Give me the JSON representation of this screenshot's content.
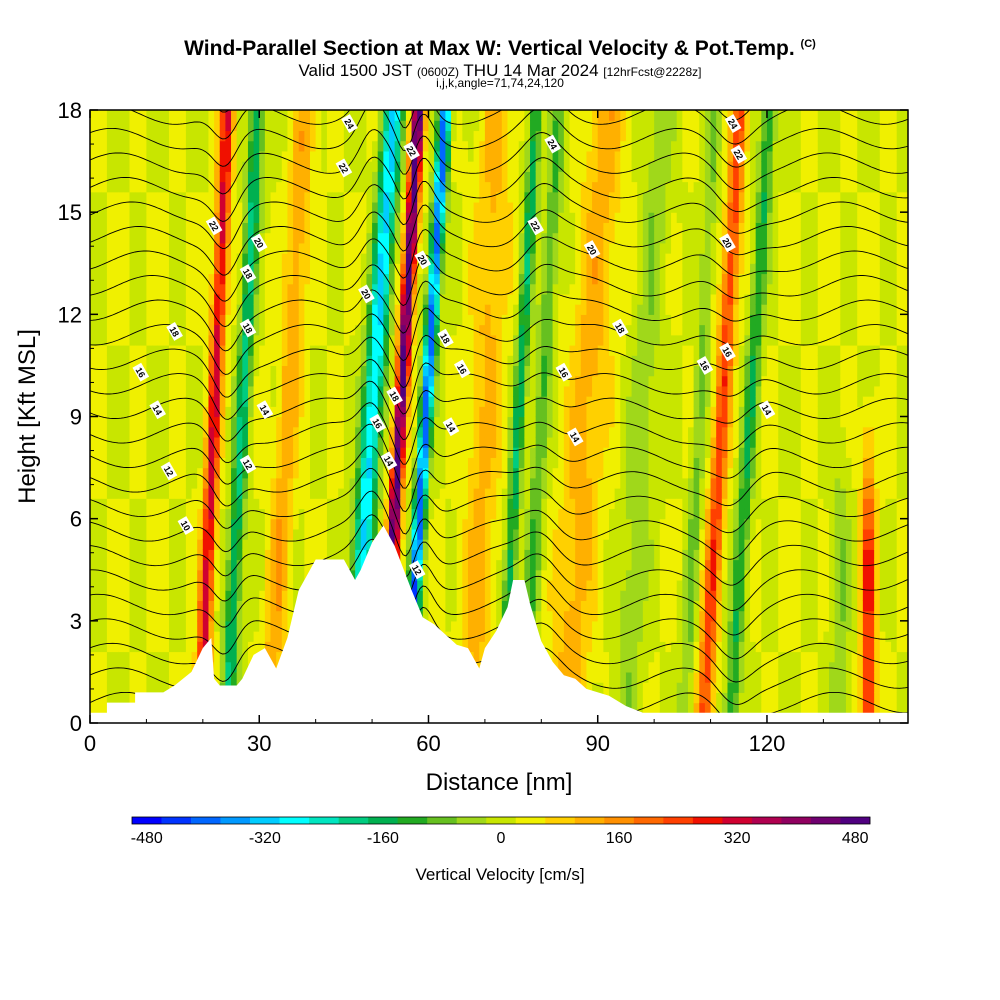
{
  "header": {
    "title": "Wind-Parallel Section at Max W: Vertical Velocity & Pot.Temp.",
    "copyright": "(C)",
    "valid_prefix": "Valid 1500 JST",
    "valid_utc": "(0600Z)",
    "valid_date": "THU 14 Mar 2024",
    "forecast": "[12hrFcst@2228z]",
    "indices": "i,j,k,angle=71,74,24,120"
  },
  "chart_data": {
    "type": "heatmap",
    "xlabel": "Distance [nm]",
    "ylabel": "Height [Kft MSL]",
    "xlim": [
      0,
      145
    ],
    "ylim": [
      0,
      18
    ],
    "xticks": [
      0,
      30,
      60,
      90,
      120
    ],
    "yticks": [
      0,
      3,
      6,
      9,
      12,
      15,
      18
    ],
    "colorbar": {
      "label": "Vertical Velocity [cm/s]",
      "min": -500,
      "max": 500,
      "step": 40,
      "tick_labels": [
        -480,
        -320,
        -160,
        0,
        160,
        320,
        480
      ],
      "colors": [
        "#0000ff",
        "#0033ff",
        "#0066ff",
        "#0099ff",
        "#00ccff",
        "#00ffff",
        "#00e5c0",
        "#00cc80",
        "#00b050",
        "#22aa22",
        "#66c020",
        "#a0d81a",
        "#c8e600",
        "#f0f000",
        "#ffd000",
        "#ffb000",
        "#ff9000",
        "#ff6800",
        "#ff4000",
        "#f01000",
        "#d00030",
        "#b00050",
        "#900060",
        "#700070",
        "#500080"
      ]
    },
    "updraft_cores_nm": [
      22,
      55,
      76,
      115,
      138
    ],
    "downdraft_cores_nm": [
      27,
      50,
      59,
      80,
      120
    ],
    "terrain_kft": [
      [
        0,
        0.3
      ],
      [
        3,
        0.3
      ],
      [
        3,
        0.6
      ],
      [
        8,
        0.6
      ],
      [
        8,
        0.9
      ],
      [
        13,
        0.9
      ],
      [
        15,
        1.1
      ],
      [
        18,
        1.5
      ],
      [
        20,
        2.2
      ],
      [
        21.5,
        2.5
      ],
      [
        22,
        1.3
      ],
      [
        23,
        1.1
      ],
      [
        26,
        1.1
      ],
      [
        27,
        1.3
      ],
      [
        29,
        2.0
      ],
      [
        31,
        2.2
      ],
      [
        33,
        1.6
      ],
      [
        35,
        2.5
      ],
      [
        37,
        3.9
      ],
      [
        38,
        4.2
      ],
      [
        40,
        4.8
      ],
      [
        45,
        4.8
      ],
      [
        47,
        4.2
      ],
      [
        48,
        4.5
      ],
      [
        50,
        5.3
      ],
      [
        52,
        5.8
      ],
      [
        54,
        5.2
      ],
      [
        57,
        3.9
      ],
      [
        59,
        3.1
      ],
      [
        61,
        2.9
      ],
      [
        63,
        2.6
      ],
      [
        65,
        2.3
      ],
      [
        67,
        2.2
      ],
      [
        69,
        1.6
      ],
      [
        70,
        2.2
      ],
      [
        72,
        2.7
      ],
      [
        74,
        3.4
      ],
      [
        75,
        4.2
      ],
      [
        77,
        4.2
      ],
      [
        78,
        3.5
      ],
      [
        80,
        2.4
      ],
      [
        82,
        1.8
      ],
      [
        84,
        1.4
      ],
      [
        86,
        1.3
      ],
      [
        88,
        1.0
      ],
      [
        92,
        0.8
      ],
      [
        95,
        0.5
      ],
      [
        98,
        0.3
      ],
      [
        145,
        0.3
      ]
    ],
    "theta_contour_labels": [
      {
        "x": 17,
        "y": 5.8,
        "text": "10"
      },
      {
        "x": 14,
        "y": 7.4,
        "text": "12"
      },
      {
        "x": 28,
        "y": 7.6,
        "text": "12"
      },
      {
        "x": 12,
        "y": 9.2,
        "text": "14"
      },
      {
        "x": 31,
        "y": 9.2,
        "text": "14"
      },
      {
        "x": 53,
        "y": 7.7,
        "text": "14"
      },
      {
        "x": 64,
        "y": 8.7,
        "text": "14"
      },
      {
        "x": 86,
        "y": 8.4,
        "text": "14"
      },
      {
        "x": 120,
        "y": 9.2,
        "text": "14"
      },
      {
        "x": 9,
        "y": 10.3,
        "text": "16"
      },
      {
        "x": 51,
        "y": 8.8,
        "text": "16"
      },
      {
        "x": 66,
        "y": 10.4,
        "text": "16"
      },
      {
        "x": 84,
        "y": 10.3,
        "text": "16"
      },
      {
        "x": 109,
        "y": 10.5,
        "text": "16"
      },
      {
        "x": 113,
        "y": 10.9,
        "text": "16"
      },
      {
        "x": 15,
        "y": 11.5,
        "text": "18"
      },
      {
        "x": 28,
        "y": 13.2,
        "text": "18"
      },
      {
        "x": 28,
        "y": 11.6,
        "text": "18"
      },
      {
        "x": 54,
        "y": 9.6,
        "text": "18"
      },
      {
        "x": 63,
        "y": 11.3,
        "text": "18"
      },
      {
        "x": 94,
        "y": 11.6,
        "text": "18"
      },
      {
        "x": 30,
        "y": 14.1,
        "text": "20"
      },
      {
        "x": 49,
        "y": 12.6,
        "text": "20"
      },
      {
        "x": 59,
        "y": 13.6,
        "text": "20"
      },
      {
        "x": 89,
        "y": 13.9,
        "text": "20"
      },
      {
        "x": 113,
        "y": 14.1,
        "text": "20"
      },
      {
        "x": 22,
        "y": 14.6,
        "text": "22"
      },
      {
        "x": 45,
        "y": 16.3,
        "text": "22"
      },
      {
        "x": 57,
        "y": 16.8,
        "text": "22"
      },
      {
        "x": 79,
        "y": 14.6,
        "text": "22"
      },
      {
        "x": 115,
        "y": 16.7,
        "text": "22"
      },
      {
        "x": 46,
        "y": 17.6,
        "text": "24"
      },
      {
        "x": 82,
        "y": 17.0,
        "text": "24"
      },
      {
        "x": 114,
        "y": 17.6,
        "text": "24"
      },
      {
        "x": 58,
        "y": 4.5,
        "text": "12"
      }
    ]
  }
}
